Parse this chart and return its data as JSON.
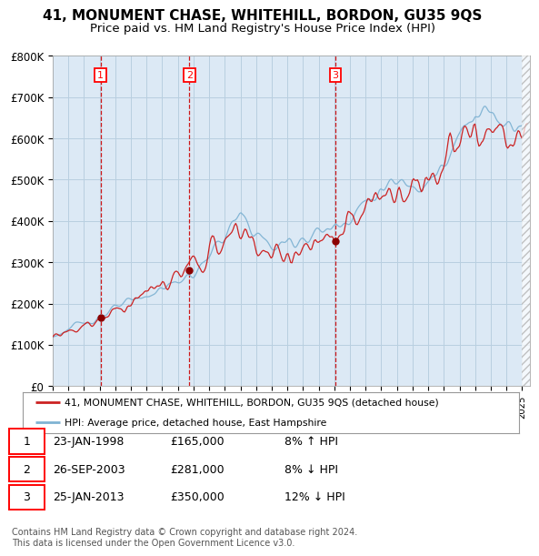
{
  "title": "41, MONUMENT CHASE, WHITEHILL, BORDON, GU35 9QS",
  "subtitle": "Price paid vs. HM Land Registry's House Price Index (HPI)",
  "ylim": [
    0,
    800000
  ],
  "yticks": [
    0,
    100000,
    200000,
    300000,
    400000,
    500000,
    600000,
    700000,
    800000
  ],
  "ytick_labels": [
    "£0",
    "£100K",
    "£200K",
    "£300K",
    "£400K",
    "£500K",
    "£600K",
    "£700K",
    "£800K"
  ],
  "xlim_start": 1995.0,
  "xlim_end": 2025.5,
  "sale_dates": [
    1998.06,
    2003.73,
    2013.07
  ],
  "sale_prices": [
    165000,
    281000,
    350000
  ],
  "sale_labels": [
    "1",
    "2",
    "3"
  ],
  "vline_color": "#cc0000",
  "sale_marker_color": "#8b0000",
  "hpi_line_color": "#7fb3d3",
  "price_line_color": "#cc2222",
  "legend_label_price": "41, MONUMENT CHASE, WHITEHILL, BORDON, GU35 9QS (detached house)",
  "legend_label_hpi": "HPI: Average price, detached house, East Hampshire",
  "table_data": [
    [
      "1",
      "23-JAN-1998",
      "£165,000",
      "8% ↑ HPI"
    ],
    [
      "2",
      "26-SEP-2003",
      "£281,000",
      "8% ↓ HPI"
    ],
    [
      "3",
      "25-JAN-2013",
      "£350,000",
      "12% ↓ HPI"
    ]
  ],
  "footer": "Contains HM Land Registry data © Crown copyright and database right 2024.\nThis data is licensed under the Open Government Licence v3.0.",
  "background_color": "#dce9f5",
  "plot_bg_color": "#dce9f5",
  "grid_color": "#b8cfe0",
  "title_fontsize": 11,
  "subtitle_fontsize": 9.5
}
